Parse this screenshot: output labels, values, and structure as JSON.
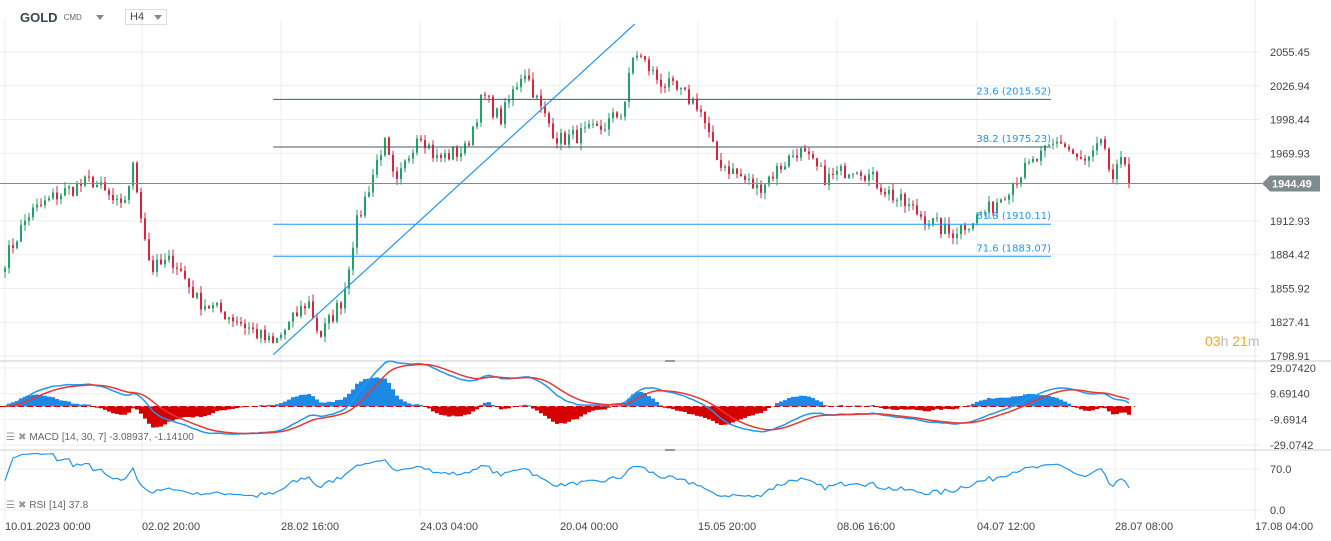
{
  "header": {
    "symbol": "GOLD",
    "symbol_suffix": "CMD",
    "timeframe": "H4"
  },
  "countdown": {
    "hours": "03",
    "h": "h",
    "minutes": "21",
    "m": "m"
  },
  "indicators": {
    "macd": {
      "label": "MACD",
      "params": "[14, 30, 7]",
      "values": "-3.08937,  -1.14100"
    },
    "rsi": {
      "label": "RSI",
      "params": "[14]",
      "value": "37.8"
    }
  },
  "colors": {
    "up": "#26a269",
    "down": "#d7263d",
    "line": "#2196f3",
    "macd_signal": "#e53935",
    "grid": "#eeeeee",
    "last_price_bg": "#7f8c8d",
    "countdown": "#f5a623"
  },
  "chart_data": {
    "type": "candlestick",
    "instrument": "GOLD",
    "timeframe": "H4",
    "price_axis_ticks": [
      "2055.45",
      "2026.94",
      "1998.44",
      "1969.93",
      "1912.93",
      "1884.42",
      "1855.92",
      "1827.41",
      "1798.91"
    ],
    "price_ylim": [
      1798.91,
      2055.45
    ],
    "last_price": "1944.49",
    "time_axis_ticks": [
      "10.01.2023  00:00",
      "02.02  20:00",
      "28.02  16:00",
      "24.03  04:00",
      "20.04  00:00",
      "15.05  20:00",
      "08.06  16:00",
      "04.07  12:00",
      "28.07  08:00",
      "17.08  04:00"
    ],
    "price_path": [
      {
        "t": "2023-01-10",
        "p": 1880
      },
      {
        "t": "2023-01-14",
        "p": 1918
      },
      {
        "t": "2023-01-19",
        "p": 1935
      },
      {
        "t": "2023-01-25",
        "p": 1947
      },
      {
        "t": "2023-01-30",
        "p": 1922
      },
      {
        "t": "2023-02-01",
        "p": 1958
      },
      {
        "t": "2023-02-04",
        "p": 1872
      },
      {
        "t": "2023-02-08",
        "p": 1880
      },
      {
        "t": "2023-02-12",
        "p": 1846
      },
      {
        "t": "2023-02-19",
        "p": 1829
      },
      {
        "t": "2023-02-25",
        "p": 1808
      },
      {
        "t": "2023-03-03",
        "p": 1846
      },
      {
        "t": "2023-03-05",
        "p": 1815
      },
      {
        "t": "2023-03-09",
        "p": 1848
      },
      {
        "t": "2023-03-11",
        "p": 1905
      },
      {
        "t": "2023-03-16",
        "p": 1981
      },
      {
        "t": "2023-03-18",
        "p": 1940
      },
      {
        "t": "2023-03-22",
        "p": 1990
      },
      {
        "t": "2023-03-25",
        "p": 1965
      },
      {
        "t": "2023-03-30",
        "p": 1973
      },
      {
        "t": "2023-04-02",
        "p": 2019
      },
      {
        "t": "2023-04-05",
        "p": 1998
      },
      {
        "t": "2023-04-09",
        "p": 2042
      },
      {
        "t": "2023-04-12",
        "p": 2006
      },
      {
        "t": "2023-04-15",
        "p": 1981
      },
      {
        "t": "2023-04-22",
        "p": 1990
      },
      {
        "t": "2023-04-26",
        "p": 2006
      },
      {
        "t": "2023-04-28",
        "p": 2057
      },
      {
        "t": "2023-05-02",
        "p": 2032
      },
      {
        "t": "2023-05-09",
        "p": 2011
      },
      {
        "t": "2023-05-12",
        "p": 1965
      },
      {
        "t": "2023-05-19",
        "p": 1940
      },
      {
        "t": "2023-05-26",
        "p": 1973
      },
      {
        "t": "2023-05-31",
        "p": 1948
      },
      {
        "t": "2023-06-05",
        "p": 1960
      },
      {
        "t": "2023-06-12",
        "p": 1931
      },
      {
        "t": "2023-06-21",
        "p": 1902
      },
      {
        "t": "2023-06-28",
        "p": 1923
      },
      {
        "t": "2023-07-03",
        "p": 1952
      },
      {
        "t": "2023-07-10",
        "p": 1981
      },
      {
        "t": "2023-07-14",
        "p": 1960
      },
      {
        "t": "2023-07-17",
        "p": 1977
      },
      {
        "t": "2023-07-19",
        "p": 1948
      },
      {
        "t": "2023-07-21",
        "p": 1965
      },
      {
        "t": "2023-07-22",
        "p": 1944.49
      }
    ],
    "trendline": {
      "from": {
        "t": "2023-02-25",
        "p": 1800
      },
      "to": {
        "t": "2023-04-28",
        "p": 2079
      }
    },
    "fibonacci": [
      {
        "label": "23.6 (2015.52)",
        "level": 2015.52
      },
      {
        "label": "38.2 (1975.23)",
        "level": 1975.23
      },
      {
        "label": "61.8 (1910.11)",
        "level": 1910.11
      },
      {
        "label": "71.6 (1883.07)",
        "level": 1883.07
      }
    ],
    "fib_range": {
      "from": "2023-02-25",
      "to": "2023-07-03"
    },
    "macd_axis_ticks": [
      "29.07420",
      "9.69140",
      "-9.6914",
      "-29.0742"
    ],
    "macd_ylim": [
      -29.0742,
      29.0742
    ],
    "rsi_axis_ticks": [
      "70.0",
      "0.0"
    ]
  }
}
